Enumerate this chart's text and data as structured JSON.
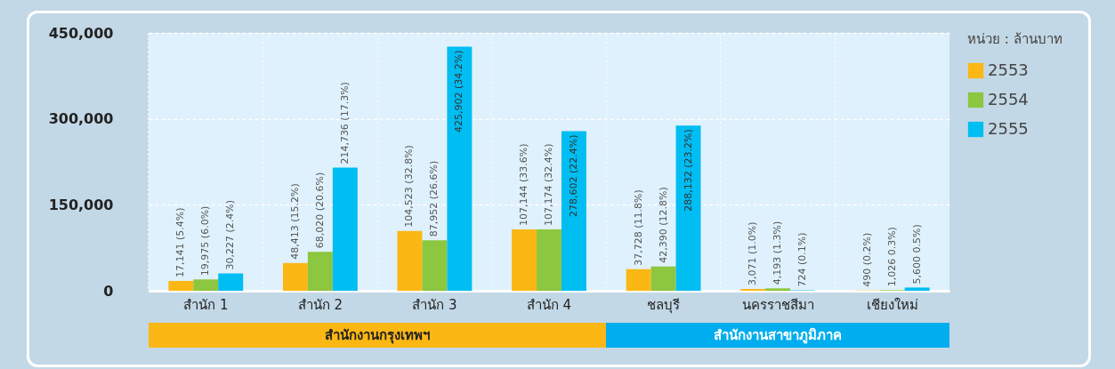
{
  "chart_data": {
    "type": "bar",
    "categories": [
      "สำนัก 1",
      "สำนัก 2",
      "สำนัก 3",
      "สำนัก 4",
      "ชลบุรี",
      "นครราชสีมา",
      "เชียงใหม่"
    ],
    "legend_title": "หน่วย : ล้านบาท",
    "series": [
      {
        "name": "2553",
        "color": "#fbb714",
        "values": [
          17141,
          48413,
          104523,
          107144,
          37728,
          3071,
          490
        ],
        "value_labels": [
          "17,141 (5.4%)",
          "48,413 (15.2%)",
          "104,523 (32.8%)",
          "107,144 (33.6%)",
          "37,728 (11.8%)",
          "3,071 (1.0%)",
          "490 (0.2%)"
        ]
      },
      {
        "name": "2554",
        "color": "#8dc63f",
        "values": [
          19975,
          68020,
          87952,
          107174,
          42390,
          4193,
          1026
        ],
        "value_labels": [
          "19,975 (6.0%)",
          "68,020 (20.6%)",
          "87,952 (26.6%)",
          "107,174 (32.4%)",
          "42,390 (12.8%)",
          "4,193 (1.3%)",
          "1,026 0.3%)"
        ]
      },
      {
        "name": "2555",
        "color": "#00bdf2",
        "values": [
          30227,
          214736,
          425902,
          278602,
          288132,
          724,
          5600
        ],
        "value_labels": [
          "30,227 (2.4%)",
          "214,736 (17.3%)",
          "425,902 (34.2%)",
          "278,602 (22.4%)",
          "288,132 (23.2%)",
          "724 (0.1%)",
          "5,600 0.5%)"
        ]
      }
    ],
    "ylim": [
      0,
      450000
    ],
    "yticks": [
      0,
      {
        "value": 150000,
        "label": "150,000"
      },
      {
        "value": 300000,
        "label": "300,000"
      },
      {
        "value": 450000,
        "label": "450,000"
      }
    ],
    "grid": true,
    "legend": "right",
    "annotations": [
      "สำนักงานกรุงเทพฯ",
      "สำนักงานสาขาภูมิภาค"
    ]
  }
}
